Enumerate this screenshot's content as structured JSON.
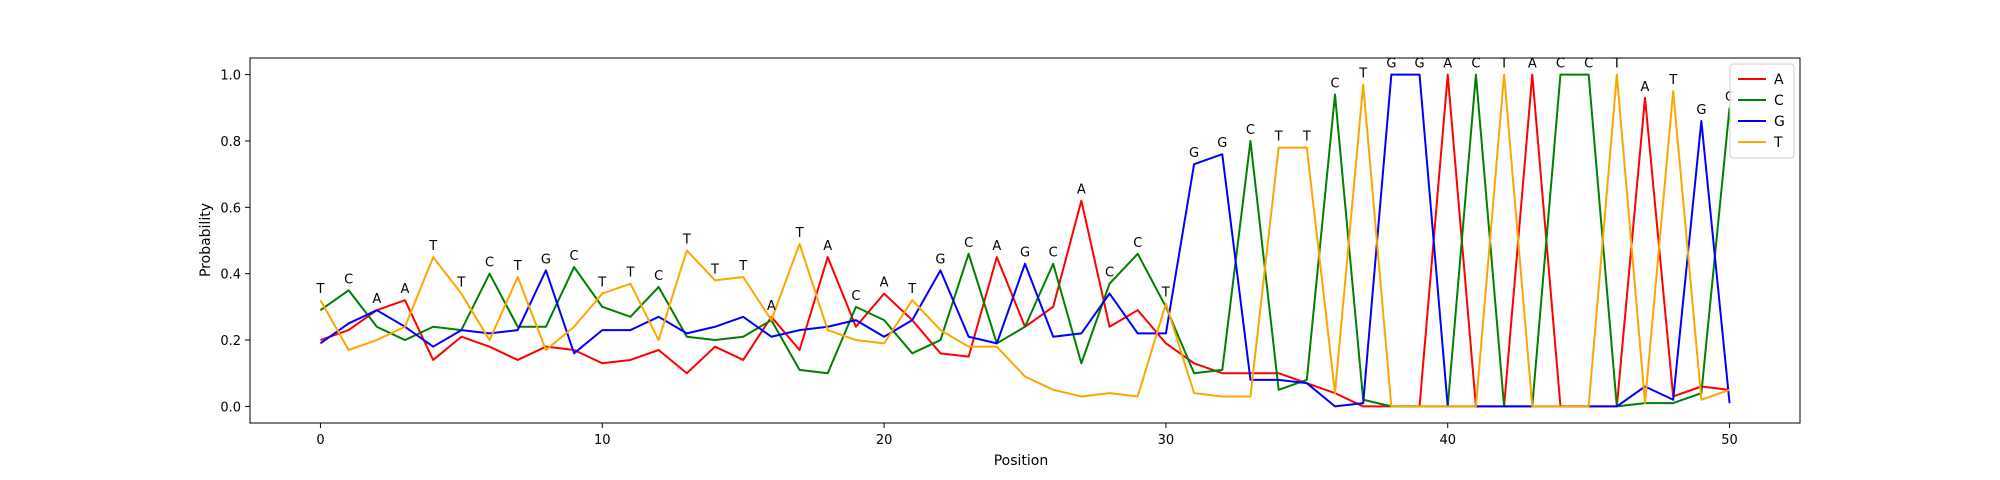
{
  "chart_data": {
    "type": "line",
    "title": "",
    "xlabel": "Position",
    "ylabel": "Probability",
    "xlim": [
      -2.5,
      52.5
    ],
    "ylim": [
      -0.05,
      1.05
    ],
    "xticks": [
      0,
      10,
      20,
      30,
      40,
      50
    ],
    "yticks": [
      0.0,
      0.2,
      0.4,
      0.6,
      0.8,
      1.0
    ],
    "xtick_labels": [
      "0",
      "10",
      "20",
      "30",
      "40",
      "50"
    ],
    "ytick_labels": [
      "0.0",
      "0.2",
      "0.4",
      "0.6",
      "0.8",
      "1.0"
    ],
    "legend_position": "top-right",
    "grid": false,
    "x": [
      0,
      1,
      2,
      3,
      4,
      5,
      6,
      7,
      8,
      9,
      10,
      11,
      12,
      13,
      14,
      15,
      16,
      17,
      18,
      19,
      20,
      21,
      22,
      23,
      24,
      25,
      26,
      27,
      28,
      29,
      30,
      31,
      32,
      33,
      34,
      35,
      36,
      37,
      38,
      39,
      40,
      41,
      42,
      43,
      44,
      45,
      46,
      47,
      48,
      49,
      50
    ],
    "series": [
      {
        "name": "A",
        "color": "#ff0000",
        "values": [
          0.2,
          0.23,
          0.29,
          0.32,
          0.14,
          0.21,
          0.18,
          0.14,
          0.18,
          0.17,
          0.13,
          0.14,
          0.17,
          0.1,
          0.18,
          0.14,
          0.27,
          0.17,
          0.45,
          0.24,
          0.34,
          0.26,
          0.16,
          0.15,
          0.45,
          0.24,
          0.3,
          0.62,
          0.24,
          0.29,
          0.19,
          0.13,
          0.1,
          0.1,
          0.1,
          0.07,
          0.04,
          0.0,
          0.0,
          0.0,
          1.0,
          0.0,
          0.0,
          1.0,
          0.0,
          0.0,
          0.0,
          0.93,
          0.03,
          0.06,
          0.05
        ]
      },
      {
        "name": "C",
        "color": "#008000",
        "values": [
          0.29,
          0.35,
          0.24,
          0.2,
          0.24,
          0.23,
          0.4,
          0.24,
          0.24,
          0.42,
          0.3,
          0.27,
          0.36,
          0.21,
          0.2,
          0.21,
          0.26,
          0.11,
          0.1,
          0.3,
          0.26,
          0.16,
          0.2,
          0.46,
          0.19,
          0.24,
          0.43,
          0.13,
          0.37,
          0.46,
          0.3,
          0.1,
          0.11,
          0.8,
          0.05,
          0.08,
          0.94,
          0.02,
          0.0,
          0.0,
          0.0,
          1.0,
          0.0,
          0.0,
          1.0,
          1.0,
          0.0,
          0.01,
          0.01,
          0.04,
          0.9
        ]
      },
      {
        "name": "G",
        "color": "#0000ff",
        "values": [
          0.19,
          0.25,
          0.29,
          0.24,
          0.18,
          0.23,
          0.22,
          0.23,
          0.41,
          0.16,
          0.23,
          0.23,
          0.27,
          0.22,
          0.24,
          0.27,
          0.21,
          0.23,
          0.24,
          0.26,
          0.21,
          0.26,
          0.41,
          0.21,
          0.19,
          0.43,
          0.21,
          0.22,
          0.34,
          0.22,
          0.22,
          0.73,
          0.76,
          0.08,
          0.08,
          0.07,
          0.0,
          0.01,
          1.0,
          1.0,
          0.0,
          0.0,
          0.0,
          0.0,
          0.0,
          0.0,
          0.0,
          0.06,
          0.02,
          0.86,
          0.01
        ]
      },
      {
        "name": "T",
        "color": "#ffa500",
        "values": [
          0.32,
          0.17,
          0.2,
          0.24,
          0.45,
          0.34,
          0.2,
          0.39,
          0.17,
          0.24,
          0.34,
          0.37,
          0.2,
          0.47,
          0.38,
          0.39,
          0.26,
          0.49,
          0.23,
          0.2,
          0.19,
          0.32,
          0.23,
          0.18,
          0.18,
          0.09,
          0.05,
          0.03,
          0.04,
          0.03,
          0.31,
          0.04,
          0.03,
          0.03,
          0.78,
          0.78,
          0.04,
          0.97,
          0.0,
          0.0,
          0.0,
          0.0,
          1.0,
          0.0,
          0.0,
          0.0,
          1.0,
          0.01,
          0.95,
          0.02,
          0.05
        ]
      }
    ],
    "peak_labels": [
      "T",
      "C",
      "A",
      "A",
      "T",
      "T",
      "C",
      "T",
      "G",
      "C",
      "T",
      "T",
      "C",
      "T",
      "T",
      "T",
      "A",
      "T",
      "A",
      "C",
      "A",
      "T",
      "G",
      "C",
      "A",
      "G",
      "C",
      "A",
      "C",
      "C",
      "T",
      "G",
      "G",
      "C",
      "T",
      "T",
      "C",
      "T",
      "G",
      "G",
      "A",
      "C",
      "T",
      "A",
      "C",
      "C",
      "T",
      "A",
      "T",
      "G",
      "C"
    ]
  }
}
